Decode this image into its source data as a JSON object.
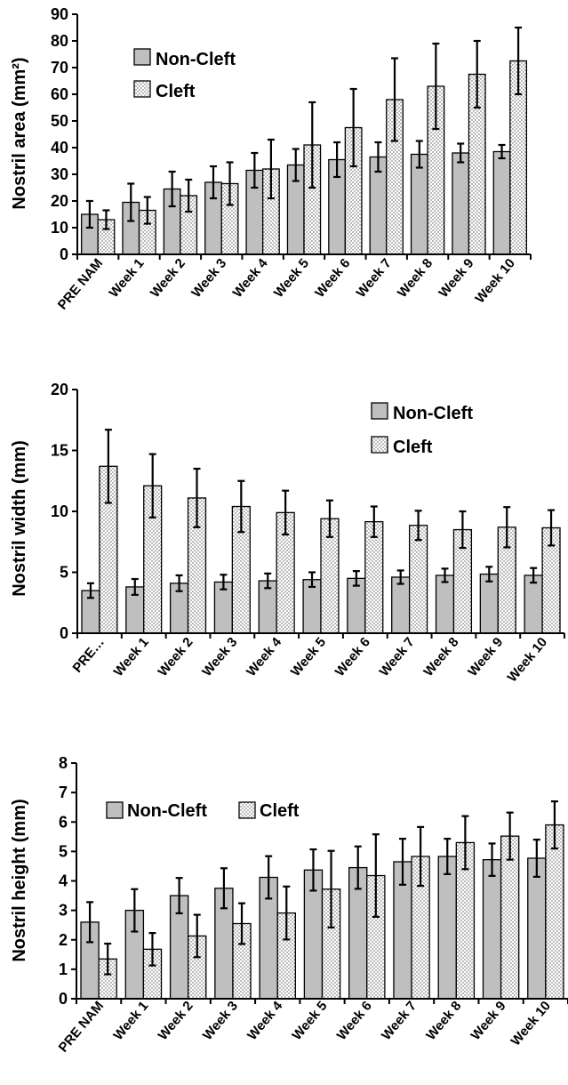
{
  "colors": {
    "non_cleft": "#bfbfbf",
    "cleft_bg": "#ffffff",
    "cleft_dots": "#555555",
    "axis": "#000000"
  },
  "chart_data": [
    {
      "type": "bar",
      "title": "",
      "xlabel": "",
      "ylabel": "Nostril area (mm²)",
      "ylim": [
        0,
        90
      ],
      "yticks": [
        0,
        10,
        20,
        30,
        40,
        50,
        60,
        70,
        80,
        90
      ],
      "legend_position": "top-left",
      "categories": [
        "PRE NAM",
        "Week 1",
        "Week 2",
        "Week 3",
        "Week 4",
        "Week 5",
        "Week 6",
        "Week 7",
        "Week 8",
        "Week 9",
        "Week 10"
      ],
      "series": [
        {
          "name": "Non-Cleft",
          "values": [
            15,
            19.5,
            24.5,
            27,
            31.5,
            33.5,
            35.5,
            36.5,
            37.5,
            38,
            38.5
          ],
          "errors": [
            5,
            7,
            6.5,
            6,
            6.5,
            6,
            6.5,
            5.5,
            5,
            3.5,
            2.5
          ]
        },
        {
          "name": "Cleft",
          "values": [
            13,
            16.5,
            22,
            26.5,
            32,
            41,
            47.5,
            58,
            63,
            67.5,
            72.5
          ],
          "errors": [
            3.5,
            5,
            6,
            8,
            11,
            16,
            14.5,
            15.5,
            16,
            12.5,
            12.5
          ]
        }
      ]
    },
    {
      "type": "bar",
      "title": "",
      "xlabel": "",
      "ylabel": "Nostril width (mm)",
      "ylim": [
        0,
        20
      ],
      "yticks": [
        0,
        5,
        10,
        15,
        20
      ],
      "legend_position": "top-right",
      "categories": [
        "PRE…",
        "Week 1",
        "Week 2",
        "Week 3",
        "Week 4",
        "Week 5",
        "Week 6",
        "Week 7",
        "Week 8",
        "Week 9",
        "Week 10"
      ],
      "series": [
        {
          "name": "Non-Cleft",
          "values": [
            3.5,
            3.8,
            4.1,
            4.2,
            4.3,
            4.4,
            4.5,
            4.6,
            4.75,
            4.85,
            4.75
          ],
          "errors": [
            0.6,
            0.65,
            0.65,
            0.6,
            0.6,
            0.6,
            0.6,
            0.55,
            0.55,
            0.6,
            0.6
          ]
        },
        {
          "name": "Cleft",
          "values": [
            13.7,
            12.1,
            11.1,
            10.4,
            9.9,
            9.4,
            9.15,
            8.85,
            8.5,
            8.7,
            8.65
          ],
          "errors": [
            3,
            2.6,
            2.4,
            2.1,
            1.8,
            1.5,
            1.25,
            1.2,
            1.5,
            1.65,
            1.45
          ]
        }
      ]
    },
    {
      "type": "bar",
      "title": "",
      "xlabel": "",
      "ylabel": "Nostril height (mm)",
      "ylim": [
        0,
        8
      ],
      "yticks": [
        0,
        1,
        2,
        3,
        4,
        5,
        6,
        7,
        8
      ],
      "legend_position": "top-left",
      "categories": [
        "PRE NAM",
        "Week 1",
        "Week 2",
        "Week 3",
        "Week 4",
        "Week 5",
        "Week 6",
        "Week 7",
        "Week 8",
        "Week 9",
        "Week 10"
      ],
      "series": [
        {
          "name": "Non-Cleft",
          "values": [
            2.6,
            3.0,
            3.5,
            3.75,
            4.12,
            4.37,
            4.45,
            4.65,
            4.83,
            4.72,
            4.77
          ],
          "errors": [
            0.68,
            0.72,
            0.6,
            0.68,
            0.72,
            0.7,
            0.72,
            0.78,
            0.6,
            0.55,
            0.63
          ]
        },
        {
          "name": "Cleft",
          "values": [
            1.35,
            1.68,
            2.13,
            2.55,
            2.91,
            3.72,
            4.18,
            4.83,
            5.3,
            5.52,
            5.9
          ],
          "errors": [
            0.52,
            0.55,
            0.72,
            0.69,
            0.9,
            1.3,
            1.4,
            1.0,
            0.9,
            0.8,
            0.8
          ]
        }
      ]
    }
  ]
}
